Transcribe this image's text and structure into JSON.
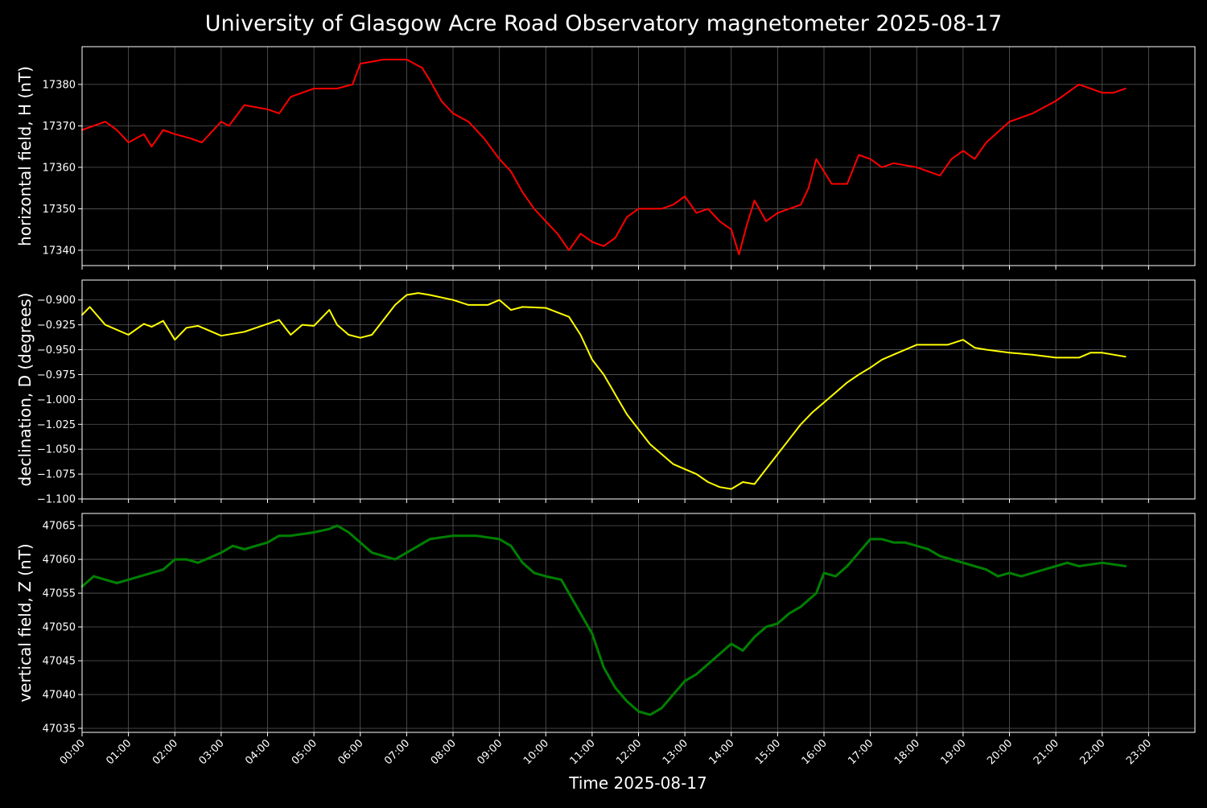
{
  "chart_data": {
    "type": "line",
    "title": "University of Glasgow Acre Road Observatory magnetometer 2025-08-17",
    "xlabel": "Time 2025-08-17",
    "x_ticks": [
      "00:00",
      "01:00",
      "02:00",
      "03:00",
      "04:00",
      "05:00",
      "06:00",
      "07:00",
      "08:00",
      "09:00",
      "10:00",
      "11:00",
      "12:00",
      "13:00",
      "14:00",
      "15:00",
      "16:00",
      "17:00",
      "18:00",
      "19:00",
      "20:00",
      "21:00",
      "22:00",
      "23:00"
    ],
    "xlim": [
      "00:00",
      "24:00"
    ],
    "grid": true,
    "background": "#000000",
    "panels": [
      {
        "id": "h",
        "ylabel": "horizontal field, H (nT)",
        "color": "#ff0000",
        "ylim": [
          17336.3,
          17389.1
        ],
        "yticks": [
          17340,
          17350,
          17360,
          17370,
          17380
        ],
        "ytick_labels": [
          "17340",
          "17350",
          "17360",
          "17370",
          "17380"
        ],
        "series": {
          "x": [
            "00:00",
            "00:30",
            "00:45",
            "01:00",
            "01:20",
            "01:30",
            "01:45",
            "02:00",
            "02:20",
            "02:35",
            "03:00",
            "03:10",
            "03:30",
            "04:00",
            "04:15",
            "04:30",
            "05:00",
            "05:30",
            "05:50",
            "06:00",
            "06:30",
            "07:00",
            "07:20",
            "07:30",
            "07:45",
            "08:00",
            "08:20",
            "08:40",
            "09:00",
            "09:15",
            "09:30",
            "09:45",
            "10:00",
            "10:15",
            "10:30",
            "10:45",
            "11:00",
            "11:15",
            "11:30",
            "11:45",
            "12:00",
            "12:15",
            "12:30",
            "12:45",
            "13:00",
            "13:15",
            "13:30",
            "13:45",
            "14:00",
            "14:10",
            "14:20",
            "14:30",
            "14:45",
            "15:00",
            "15:15",
            "15:30",
            "15:40",
            "15:50",
            "16:00",
            "16:10",
            "16:30",
            "16:45",
            "17:00",
            "17:15",
            "17:30",
            "18:00",
            "18:15",
            "18:30",
            "18:45",
            "19:00",
            "19:15",
            "19:30",
            "20:00",
            "20:30",
            "21:00",
            "21:15",
            "21:30",
            "22:00",
            "22:15",
            "22:30"
          ],
          "y": [
            17369,
            17371,
            17369,
            17366,
            17368,
            17365,
            17369,
            17368,
            17367,
            17366,
            17371,
            17370,
            17375,
            17374,
            17373,
            17377,
            17379,
            17379,
            17380,
            17385,
            17386,
            17386,
            17384,
            17381,
            17376,
            17373,
            17371,
            17367,
            17362,
            17359,
            17354,
            17350,
            17347,
            17344,
            17340,
            17344,
            17342,
            17341,
            17343,
            17348,
            17350,
            17350,
            17350,
            17351,
            17353,
            17349,
            17350,
            17347,
            17345,
            17339,
            17346,
            17352,
            17347,
            17349,
            17350,
            17351,
            17355,
            17362,
            17359,
            17356,
            17356,
            17363,
            17362,
            17360,
            17361,
            17360,
            17359,
            17358,
            17362,
            17364,
            17362,
            17366,
            17371,
            17373,
            17376,
            17378,
            17380,
            17378,
            17378,
            17379
          ]
        }
      },
      {
        "id": "d",
        "ylabel": "declination, D (degrees)",
        "color": "#ffff00",
        "ylim": [
          -1.1,
          -0.88
        ],
        "yticks": [
          -1.1,
          -1.075,
          -1.05,
          -1.025,
          -1.0,
          -0.975,
          -0.95,
          -0.925,
          -0.9
        ],
        "ytick_labels": [
          "−1.100",
          "−1.075",
          "−1.050",
          "−1.025",
          "−1.000",
          "−0.975",
          "−0.950",
          "−0.925",
          "−0.900"
        ],
        "series": {
          "x": [
            "00:00",
            "00:10",
            "00:30",
            "01:00",
            "01:20",
            "01:30",
            "01:45",
            "02:00",
            "02:15",
            "02:30",
            "03:00",
            "03:30",
            "04:00",
            "04:15",
            "04:30",
            "04:45",
            "05:00",
            "05:20",
            "05:30",
            "05:45",
            "06:00",
            "06:15",
            "06:30",
            "06:45",
            "07:00",
            "07:15",
            "07:30",
            "08:00",
            "08:20",
            "08:45",
            "09:00",
            "09:15",
            "09:30",
            "10:00",
            "10:30",
            "10:45",
            "11:00",
            "11:15",
            "11:30",
            "11:45",
            "12:00",
            "12:15",
            "12:30",
            "12:45",
            "13:00",
            "13:15",
            "13:30",
            "13:45",
            "14:00",
            "14:15",
            "14:30",
            "14:45",
            "15:00",
            "15:15",
            "15:30",
            "15:45",
            "16:00",
            "16:15",
            "16:30",
            "16:45",
            "17:00",
            "17:15",
            "17:30",
            "18:00",
            "18:20",
            "18:40",
            "19:00",
            "19:15",
            "19:30",
            "20:00",
            "20:30",
            "21:00",
            "21:30",
            "21:45",
            "22:00",
            "22:30"
          ],
          "y": [
            -0.915,
            -0.907,
            -0.925,
            -0.935,
            -0.924,
            -0.927,
            -0.921,
            -0.94,
            -0.928,
            -0.926,
            -0.936,
            -0.932,
            -0.924,
            -0.92,
            -0.935,
            -0.925,
            -0.926,
            -0.91,
            -0.925,
            -0.935,
            -0.938,
            -0.935,
            -0.92,
            -0.905,
            -0.895,
            -0.893,
            -0.895,
            -0.9,
            -0.905,
            -0.905,
            -0.9,
            -0.91,
            -0.907,
            -0.908,
            -0.917,
            -0.935,
            -0.96,
            -0.975,
            -0.995,
            -1.015,
            -1.03,
            -1.045,
            -1.055,
            -1.065,
            -1.07,
            -1.075,
            -1.083,
            -1.088,
            -1.09,
            -1.083,
            -1.085,
            -1.07,
            -1.055,
            -1.04,
            -1.025,
            -1.013,
            -1.003,
            -0.993,
            -0.983,
            -0.975,
            -0.968,
            -0.96,
            -0.955,
            -0.945,
            -0.945,
            -0.945,
            -0.94,
            -0.948,
            -0.95,
            -0.953,
            -0.955,
            -0.958,
            -0.958,
            -0.953,
            -0.953,
            -0.957
          ]
        }
      },
      {
        "id": "z",
        "ylabel": "vertical field, Z (nT)",
        "color": "#008000",
        "ylim": [
          47034.4,
          47066.8
        ],
        "yticks": [
          47035,
          47040,
          47045,
          47050,
          47055,
          47060,
          47065
        ],
        "ytick_labels": [
          "47035",
          "47040",
          "47045",
          "47050",
          "47055",
          "47060",
          "47065"
        ],
        "series": {
          "x": [
            "00:00",
            "00:15",
            "00:45",
            "01:00",
            "01:30",
            "01:45",
            "02:00",
            "02:15",
            "02:30",
            "03:00",
            "03:15",
            "03:30",
            "04:00",
            "04:15",
            "04:30",
            "05:00",
            "05:20",
            "05:30",
            "05:45",
            "06:00",
            "06:15",
            "06:30",
            "06:45",
            "07:00",
            "07:15",
            "07:30",
            "08:00",
            "08:30",
            "09:00",
            "09:15",
            "09:30",
            "09:45",
            "10:00",
            "10:20",
            "10:30",
            "10:45",
            "11:00",
            "11:15",
            "11:30",
            "11:45",
            "12:00",
            "12:15",
            "12:30",
            "12:45",
            "13:00",
            "13:15",
            "13:30",
            "13:45",
            "14:00",
            "14:15",
            "14:30",
            "14:45",
            "15:00",
            "15:15",
            "15:30",
            "15:45",
            "15:50",
            "16:00",
            "16:15",
            "16:30",
            "16:45",
            "17:00",
            "17:15",
            "17:30",
            "17:45",
            "18:00",
            "18:15",
            "18:30",
            "18:45",
            "19:00",
            "19:15",
            "19:30",
            "19:45",
            "20:00",
            "20:15",
            "20:30",
            "20:45",
            "21:00",
            "21:15",
            "21:30",
            "22:00",
            "22:30"
          ],
          "y": [
            47056,
            47057.5,
            47056.5,
            47057,
            47058,
            47058.5,
            47060,
            47060,
            47059.5,
            47061,
            47062,
            47061.5,
            47062.5,
            47063.5,
            47063.5,
            47064,
            47064.5,
            47065,
            47064,
            47062.5,
            47061,
            47060.5,
            47060,
            47061,
            47062,
            47063,
            47063.5,
            47063.5,
            47063,
            47062,
            47059.5,
            47058,
            47057.5,
            47057,
            47055,
            47052,
            47049,
            47044,
            47041,
            47039,
            47037.5,
            47037,
            47038,
            47040,
            47042,
            47043,
            47044.5,
            47046,
            47047.5,
            47046.5,
            47048.5,
            47050,
            47050.5,
            47052,
            47053,
            47054.5,
            47055,
            47058,
            47057.5,
            47059,
            47061,
            47063,
            47063,
            47062.5,
            47062.5,
            47062,
            47061.5,
            47060.5,
            47060,
            47059.5,
            47059,
            47058.5,
            47057.5,
            47058,
            47057.5,
            47058,
            47058.5,
            47059,
            47059.5,
            47059,
            47059.5,
            47059
          ]
        }
      }
    ]
  }
}
